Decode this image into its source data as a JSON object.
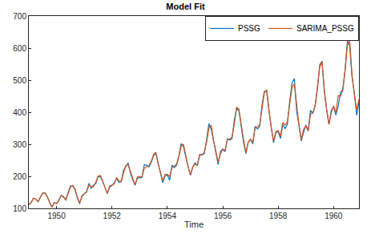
{
  "chart_data": {
    "type": "line",
    "title": "Model Fit",
    "x_label": "Time",
    "x": [
      1949,
      1949.083,
      1949.167,
      1949.25,
      1949.333,
      1949.417,
      1949.5,
      1949.583,
      1949.667,
      1949.75,
      1949.833,
      1949.917,
      1950,
      1950.083,
      1950.167,
      1950.25,
      1950.333,
      1950.417,
      1950.5,
      1950.583,
      1950.667,
      1950.75,
      1950.833,
      1950.917,
      1951,
      1951.083,
      1951.167,
      1951.25,
      1951.333,
      1951.417,
      1951.5,
      1951.583,
      1951.667,
      1951.75,
      1951.833,
      1951.917,
      1952,
      1952.083,
      1952.167,
      1952.25,
      1952.333,
      1952.417,
      1952.5,
      1952.583,
      1952.667,
      1952.75,
      1952.833,
      1952.917,
      1953,
      1953.083,
      1953.167,
      1953.25,
      1953.333,
      1953.417,
      1953.5,
      1953.583,
      1953.667,
      1953.75,
      1953.833,
      1953.917,
      1954,
      1954.083,
      1954.167,
      1954.25,
      1954.333,
      1954.417,
      1954.5,
      1954.583,
      1954.667,
      1954.75,
      1954.833,
      1954.917,
      1955,
      1955.083,
      1955.167,
      1955.25,
      1955.333,
      1955.417,
      1955.5,
      1955.583,
      1955.667,
      1955.75,
      1955.833,
      1955.917,
      1956,
      1956.083,
      1956.167,
      1956.25,
      1956.333,
      1956.417,
      1956.5,
      1956.583,
      1956.667,
      1956.75,
      1956.833,
      1956.917,
      1957,
      1957.083,
      1957.167,
      1957.25,
      1957.333,
      1957.417,
      1957.5,
      1957.583,
      1957.667,
      1957.75,
      1957.833,
      1957.917,
      1958,
      1958.083,
      1958.167,
      1958.25,
      1958.333,
      1958.417,
      1958.5,
      1958.583,
      1958.667,
      1958.75,
      1958.833,
      1958.917,
      1959,
      1959.083,
      1959.167,
      1959.25,
      1959.333,
      1959.417,
      1959.5,
      1959.583,
      1959.667,
      1959.75,
      1959.833,
      1959.917,
      1960,
      1960.083,
      1960.167,
      1960.25,
      1960.333,
      1960.417,
      1960.5,
      1960.583,
      1960.667,
      1960.75,
      1960.833,
      1960.917
    ],
    "series": [
      {
        "name": "PSSG",
        "color": "#0072BD",
        "values": [
          112,
          118,
          132,
          129,
          121,
          135,
          148,
          148,
          136,
          119,
          104,
          118,
          115,
          126,
          141,
          135,
          125,
          149,
          170,
          170,
          158,
          133,
          114,
          140,
          145,
          150,
          178,
          163,
          172,
          178,
          199,
          199,
          184,
          162,
          146,
          166,
          171,
          180,
          193,
          181,
          183,
          218,
          230,
          242,
          209,
          191,
          172,
          194,
          196,
          196,
          236,
          235,
          229,
          243,
          264,
          272,
          237,
          211,
          180,
          201,
          204,
          188,
          235,
          227,
          234,
          264,
          302,
          293,
          259,
          229,
          203,
          229,
          242,
          233,
          267,
          269,
          270,
          315,
          364,
          347,
          312,
          274,
          237,
          278,
          284,
          277,
          317,
          313,
          318,
          374,
          413,
          405,
          355,
          306,
          271,
          306,
          315,
          301,
          356,
          348,
          355,
          422,
          465,
          467,
          404,
          347,
          305,
          336,
          340,
          318,
          362,
          348,
          363,
          435,
          491,
          505,
          404,
          359,
          310,
          337,
          360,
          342,
          406,
          396,
          420,
          472,
          548,
          559,
          463,
          407,
          362,
          405,
          417,
          391,
          419,
          461,
          472,
          535,
          622,
          606,
          508,
          461,
          390,
          432
        ]
      },
      {
        "name": "SARIMA_PSSG",
        "color": "#D95319",
        "values": [
          112,
          118,
          132,
          129,
          121,
          135,
          148,
          148,
          136,
          119,
          104,
          118,
          115,
          124,
          140,
          137,
          127,
          146,
          166,
          172,
          160,
          136,
          117,
          136,
          146,
          152,
          172,
          168,
          167,
          182,
          200,
          203,
          184,
          164,
          146,
          170,
          172,
          176,
          196,
          186,
          184,
          210,
          233,
          236,
          213,
          193,
          173,
          198,
          200,
          198,
          225,
          230,
          233,
          246,
          268,
          275,
          239,
          213,
          186,
          206,
          206,
          200,
          228,
          232,
          238,
          262,
          293,
          300,
          262,
          230,
          204,
          230,
          238,
          236,
          268,
          266,
          275,
          307,
          350,
          360,
          313,
          276,
          244,
          270,
          285,
          280,
          314,
          316,
          322,
          362,
          416,
          410,
          360,
          315,
          275,
          305,
          316,
          306,
          350,
          354,
          360,
          410,
          460,
          470,
          408,
          350,
          310,
          340,
          343,
          326,
          368,
          360,
          370,
          423,
          478,
          488,
          420,
          362,
          314,
          346,
          357,
          341,
          394,
          398,
          418,
          480,
          540,
          558,
          470,
          410,
          362,
          398,
          420,
          398,
          452,
          450,
          468,
          530,
          610,
          622,
          516,
          455,
          408,
          440
        ]
      }
    ],
    "xlim": [
      1949,
      1960.917
    ],
    "xticks": [
      1950,
      1952,
      1954,
      1956,
      1958,
      1960
    ],
    "ylim": [
      100,
      700
    ],
    "yticks": [
      100,
      200,
      300,
      400,
      500,
      600,
      700
    ],
    "grid": false,
    "legend": "northeast"
  }
}
